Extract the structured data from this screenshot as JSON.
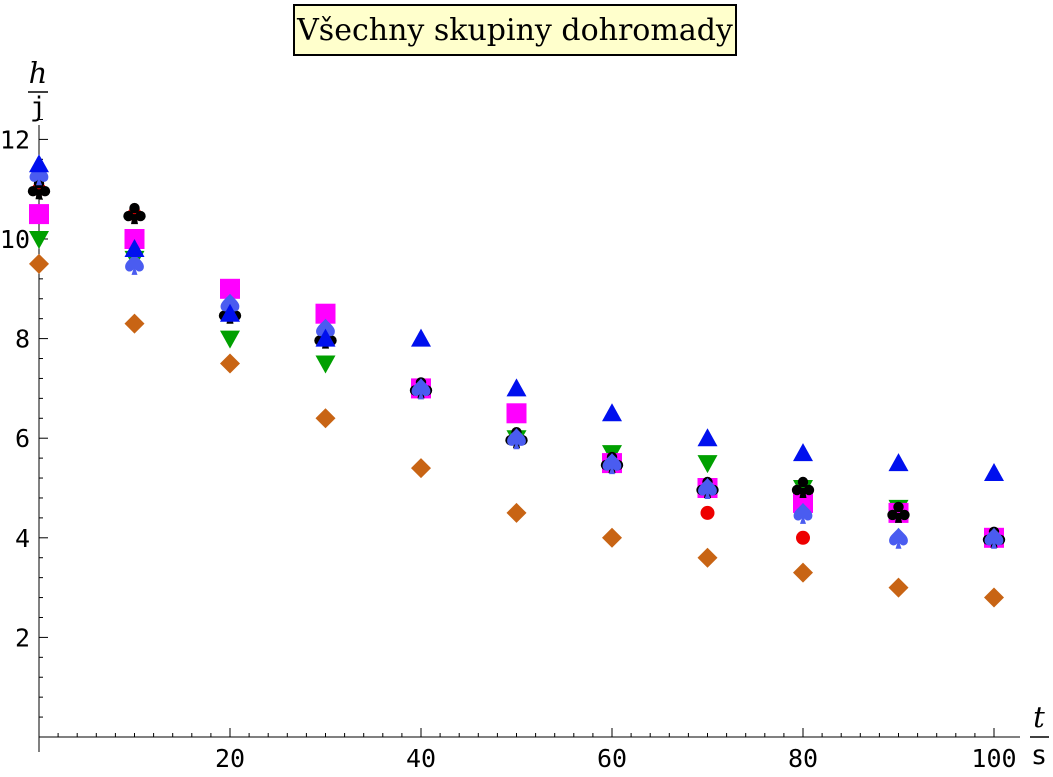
{
  "chart_data": {
    "type": "scatter",
    "title": "Všechny skupiny dohromady",
    "xlabel": {
      "numerator": "t",
      "denominator": "s"
    },
    "ylabel": {
      "numerator": "h",
      "denominator": "j"
    },
    "xlim": [
      0,
      100
    ],
    "ylim": [
      0,
      12
    ],
    "x_ticks": [
      20,
      40,
      60,
      80,
      100
    ],
    "y_ticks": [
      2,
      4,
      6,
      8,
      10,
      12
    ],
    "grid": false,
    "series": [
      {
        "marker": "circle",
        "color": "#ee0000",
        "points": [
          [
            0,
            11.0
          ],
          [
            10,
            10.5
          ],
          [
            20,
            8.5
          ],
          [
            30,
            8.0
          ],
          [
            40,
            7.0
          ],
          [
            50,
            6.0
          ],
          [
            60,
            5.5
          ],
          [
            70,
            4.5
          ],
          [
            80,
            4.0
          ],
          [
            90,
            4.5
          ],
          [
            100,
            4.0
          ]
        ]
      },
      {
        "marker": "triangle-down",
        "color": "#00a000",
        "points": [
          [
            0,
            10.0
          ],
          [
            10,
            9.6
          ],
          [
            20,
            8.0
          ],
          [
            30,
            7.5
          ],
          [
            40,
            7.0
          ],
          [
            50,
            6.0
          ],
          [
            60,
            5.7
          ],
          [
            70,
            5.5
          ],
          [
            80,
            5.0
          ],
          [
            90,
            4.6
          ],
          [
            100,
            4.0
          ]
        ]
      },
      {
        "marker": "diamond",
        "color": "#c86414",
        "points": [
          [
            0,
            9.5
          ],
          [
            10,
            8.3
          ],
          [
            20,
            7.5
          ],
          [
            30,
            6.4
          ],
          [
            40,
            5.4
          ],
          [
            50,
            4.5
          ],
          [
            60,
            4.0
          ],
          [
            70,
            3.6
          ],
          [
            80,
            3.3
          ],
          [
            90,
            3.0
          ],
          [
            100,
            2.8
          ]
        ]
      },
      {
        "marker": "square",
        "color": "#ff00ff",
        "points": [
          [
            0,
            10.5
          ],
          [
            10,
            10.0
          ],
          [
            20,
            9.0
          ],
          [
            30,
            8.5
          ],
          [
            40,
            7.0
          ],
          [
            50,
            6.5
          ],
          [
            60,
            5.5
          ],
          [
            70,
            5.0
          ],
          [
            80,
            4.7
          ],
          [
            90,
            4.5
          ],
          [
            100,
            4.0
          ]
        ]
      },
      {
        "marker": "club",
        "color": "#000000",
        "points": [
          [
            0,
            11.0
          ],
          [
            10,
            10.5
          ],
          [
            20,
            8.5
          ],
          [
            30,
            8.0
          ],
          [
            40,
            7.0
          ],
          [
            50,
            6.0
          ],
          [
            60,
            5.5
          ],
          [
            70,
            5.0
          ],
          [
            80,
            5.0
          ],
          [
            90,
            4.5
          ],
          [
            100,
            4.0
          ]
        ]
      },
      {
        "marker": "spade",
        "color": "#4a5cf0",
        "points": [
          [
            0,
            11.3
          ],
          [
            10,
            9.5
          ],
          [
            20,
            8.7
          ],
          [
            30,
            8.2
          ],
          [
            40,
            7.0
          ],
          [
            50,
            6.0
          ],
          [
            60,
            5.5
          ],
          [
            70,
            5.0
          ],
          [
            80,
            4.5
          ],
          [
            90,
            4.0
          ],
          [
            100,
            4.0
          ]
        ]
      },
      {
        "marker": "triangle-up",
        "color": "#0010ee",
        "points": [
          [
            0,
            11.5
          ],
          [
            10,
            9.8
          ],
          [
            20,
            8.5
          ],
          [
            30,
            8.0
          ],
          [
            40,
            8.0
          ],
          [
            50,
            7.0
          ],
          [
            60,
            6.5
          ],
          [
            70,
            6.0
          ],
          [
            80,
            5.7
          ],
          [
            90,
            5.5
          ],
          [
            100,
            5.3
          ]
        ]
      }
    ]
  }
}
